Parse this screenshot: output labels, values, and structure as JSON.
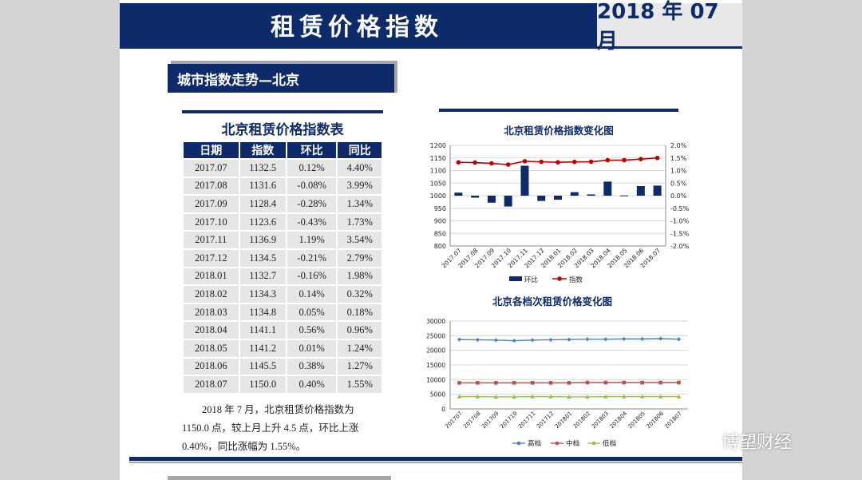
{
  "header": {
    "title": "租赁价格指数",
    "date": "2018 年 07 月"
  },
  "section": {
    "title": "城市指数走势—北京"
  },
  "table": {
    "title": "北京租赁价格指数表",
    "columns": [
      "日期",
      "指数",
      "环比",
      "同比"
    ],
    "rows": [
      [
        "2017.07",
        "1132.5",
        "0.12%",
        "4.40%"
      ],
      [
        "2017.08",
        "1131.6",
        "-0.08%",
        "3.99%"
      ],
      [
        "2017.09",
        "1128.4",
        "-0.28%",
        "1.34%"
      ],
      [
        "2017.10",
        "1123.6",
        "-0.43%",
        "1.73%"
      ],
      [
        "2017.11",
        "1136.9",
        "1.19%",
        "3.54%"
      ],
      [
        "2017.12",
        "1134.5",
        "-0.21%",
        "2.79%"
      ],
      [
        "2018.01",
        "1132.7",
        "-0.16%",
        "1.98%"
      ],
      [
        "2018.02",
        "1134.3",
        "0.14%",
        "0.32%"
      ],
      [
        "2018.03",
        "1134.8",
        "0.05%",
        "0.18%"
      ],
      [
        "2018.04",
        "1141.1",
        "0.56%",
        "0.96%"
      ],
      [
        "2018.05",
        "1141.2",
        "0.01%",
        "1.24%"
      ],
      [
        "2018.06",
        "1145.5",
        "0.38%",
        "1.27%"
      ],
      [
        "2018.07",
        "1150.0",
        "0.40%",
        "1.55%"
      ]
    ]
  },
  "paragraph": "2018 年 7 月，北京租赁价格指数为 1150.0 点，较上月上升 4.5 点，环比上涨 0.40%，同比涨幅为 1.55%。",
  "watermark": {
    "text": "博望财经",
    "icon": "wechat-icon"
  },
  "colors": {
    "navy": "#0d2a6b",
    "red": "#c00000",
    "blue": "#4f81bd",
    "redline": "#c0504d",
    "green": "#9bbb59"
  },
  "chart_data": [
    {
      "type": "bar+line",
      "title": "北京租赁价格指数变化图",
      "categories": [
        "2017.07",
        "2017.08",
        "2017.09",
        "2017.10",
        "2017.11",
        "2017.12",
        "2018.01",
        "2018.02",
        "2018.03",
        "2018.04",
        "2018.05",
        "2018.06",
        "2018.07"
      ],
      "left_axis": {
        "ylim": [
          800,
          1200
        ],
        "ticks": [
          "1200",
          "1150",
          "1100",
          "1050",
          "1000",
          "950",
          "900",
          "850",
          "800"
        ]
      },
      "right_axis": {
        "ylim": [
          -2.0,
          2.0
        ],
        "ticks": [
          "2.0%",
          "1.5%",
          "1.0%",
          "0.5%",
          "0.0%",
          "-0.5%",
          "-1.0%",
          "-1.5%",
          "-2.0%"
        ]
      },
      "series": [
        {
          "name": "环比",
          "type": "bar",
          "axis": "right",
          "values": [
            0.12,
            -0.08,
            -0.28,
            -0.43,
            1.19,
            -0.21,
            -0.16,
            0.14,
            0.05,
            0.56,
            0.01,
            0.38,
            0.4
          ]
        },
        {
          "name": "指数",
          "type": "line",
          "axis": "left",
          "values": [
            1132.5,
            1131.6,
            1128.4,
            1123.6,
            1136.9,
            1134.5,
            1132.7,
            1134.3,
            1134.8,
            1141.1,
            1141.2,
            1145.5,
            1150.0
          ]
        }
      ],
      "legend": [
        "环比",
        "指数"
      ]
    },
    {
      "type": "line",
      "title": "北京各档次租赁价格变化图",
      "categories": [
        "201707",
        "201708",
        "201709",
        "201710",
        "201711",
        "201712",
        "201801",
        "201802",
        "201803",
        "201804",
        "201805",
        "201806",
        "201807"
      ],
      "ylim": [
        0,
        30000
      ],
      "ticks": [
        "30000",
        "25000",
        "20000",
        "15000",
        "10000",
        "5000",
        "0"
      ],
      "series": [
        {
          "name": "高档",
          "values": [
            23700,
            23600,
            23500,
            23300,
            23500,
            23600,
            23700,
            23800,
            23800,
            23900,
            23900,
            24000,
            23800
          ]
        },
        {
          "name": "中档",
          "values": [
            8900,
            8900,
            8900,
            8900,
            8900,
            8900,
            8900,
            9000,
            9000,
            9000,
            9000,
            9000,
            9000
          ]
        },
        {
          "name": "低档",
          "values": [
            4200,
            4200,
            4100,
            4100,
            4200,
            4200,
            4100,
            4100,
            4200,
            4200,
            4200,
            4200,
            4200
          ]
        }
      ],
      "legend": [
        "高档",
        "中档",
        "低档"
      ]
    }
  ]
}
